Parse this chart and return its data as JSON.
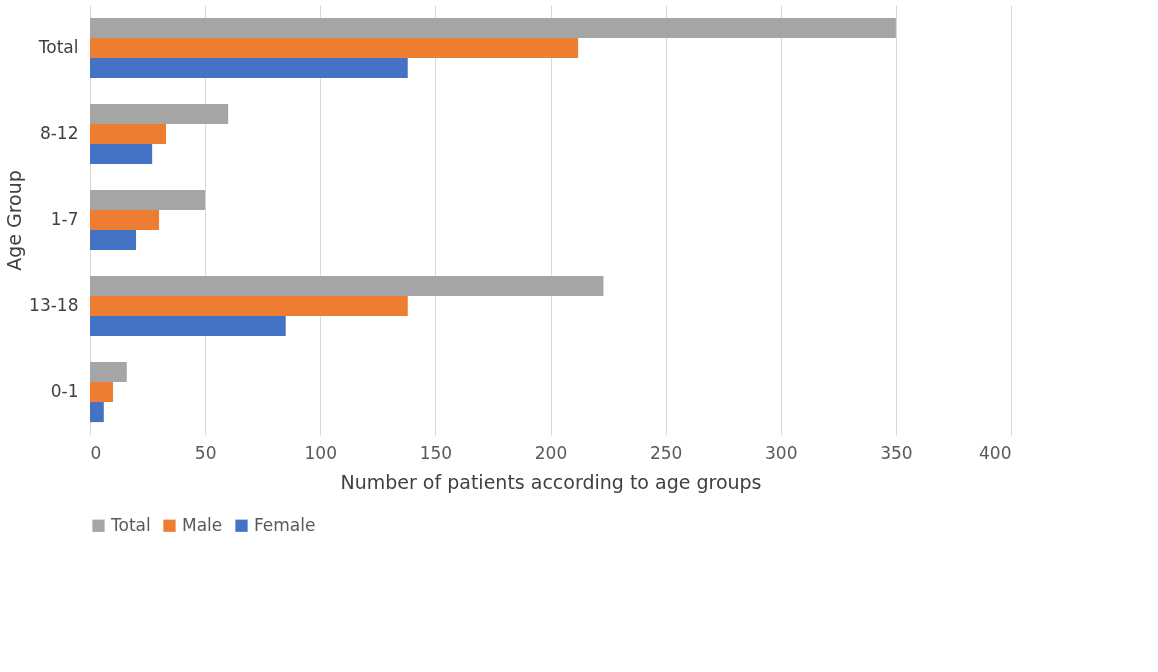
{
  "chart_data": {
    "type": "bar",
    "orientation": "horizontal",
    "xlabel": "Number of patients according to age groups",
    "ylabel": "Age Group",
    "categories": [
      "Total",
      "8-12",
      "1-7",
      "13-18",
      "0-1"
    ],
    "series": [
      {
        "name": "Total",
        "color": "#a5a5a5",
        "values": [
          350,
          60,
          50,
          223,
          16
        ]
      },
      {
        "name": "Male",
        "color": "#ed7d31",
        "values": [
          212,
          33,
          30,
          138,
          10
        ]
      },
      {
        "name": "Female",
        "color": "#4472c4",
        "values": [
          138,
          27,
          20,
          85,
          6
        ]
      }
    ],
    "xlim": [
      0,
      400
    ],
    "xticks": [
      0,
      50,
      100,
      150,
      200,
      250,
      300,
      350,
      400
    ],
    "grid": "x",
    "legend": "bottom"
  }
}
